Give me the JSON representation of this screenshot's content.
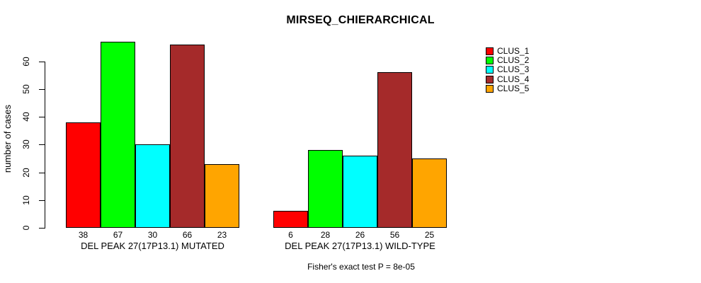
{
  "chart_data": {
    "type": "bar",
    "title": "MIRSEQ_CHIERARCHICAL",
    "ylabel": "number of cases",
    "ylim": [
      0,
      60
    ],
    "yticks": [
      0,
      10,
      20,
      30,
      40,
      50,
      60
    ],
    "grid": false,
    "legend_position": "right-outside",
    "groups": [
      {
        "label": "DEL PEAK 27(17P13.1) MUTATED",
        "values": [
          38,
          67,
          30,
          66,
          23
        ]
      },
      {
        "label": "DEL PEAK 27(17P13.1) WILD-TYPE",
        "values": [
          6,
          28,
          26,
          56,
          25
        ]
      }
    ],
    "series": [
      {
        "name": "CLUS_1",
        "color": "#FF0000"
      },
      {
        "name": "CLUS_2",
        "color": "#00FF00"
      },
      {
        "name": "CLUS_3",
        "color": "#00FFFF"
      },
      {
        "name": "CLUS_4",
        "color": "#A52A2A"
      },
      {
        "name": "CLUS_5",
        "color": "#FFA500"
      }
    ],
    "annotation": "Fisher's exact test P = 8e-05"
  }
}
